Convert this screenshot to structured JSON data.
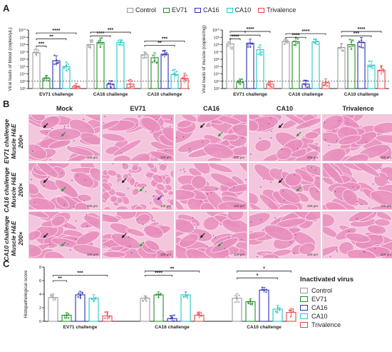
{
  "panels": {
    "a": "A",
    "b": "B",
    "c": "C"
  },
  "colors": {
    "Control": "#9a9a9a",
    "EV71": "#1f8f24",
    "CA16": "#2b2fb0",
    "CA10": "#22c7c7",
    "Trivalence": "#e84545",
    "he_background": "#f4c6dd",
    "he_fiber": "#e88ebd",
    "arrow_black": "#111111",
    "arrow_green": "#1d9a2a",
    "arrow_blue": "#2030c0"
  },
  "legend_a": [
    "Control",
    "EV71",
    "CA16",
    "CA10",
    "Trivalence"
  ],
  "chart_data": [
    {
      "type": "bar",
      "ylabel": "Viral loads of blood (copies/μL)",
      "log_scale": true,
      "ylim_log10": [
        2,
        10
      ],
      "yticks": [
        "10²",
        "10³",
        "10⁴",
        "10⁵",
        "10⁶",
        "10⁷",
        "10⁸",
        "10⁹",
        "10¹⁰"
      ],
      "detection_limit_log10": 3,
      "categories": [
        "EV71 challenge",
        "CA16 challenge",
        "CA10 challenge"
      ],
      "series": [
        {
          "name": "Control",
          "values": [
            6.9,
            8.0,
            6.6
          ]
        },
        {
          "name": "EV71",
          "values": [
            3.4,
            8.3,
            6.2
          ]
        },
        {
          "name": "CA16",
          "values": [
            5.8,
            2.6,
            6.7
          ]
        },
        {
          "name": "CA10",
          "values": [
            5.0,
            8.3,
            3.9
          ]
        },
        {
          "name": "Trivalence",
          "values": [
            2.3,
            2.6,
            3.4
          ]
        }
      ],
      "significance": [
        {
          "label": "****",
          "group": 0,
          "from": 0,
          "to": 4,
          "y": 9.6
        },
        {
          "label": "**",
          "group": 0,
          "from": 0,
          "to": 3,
          "y": 8.8
        },
        {
          "label": "***",
          "group": 0,
          "from": 0,
          "to": 1,
          "y": 7.8
        },
        {
          "label": "***",
          "group": 1,
          "from": 0,
          "to": 4,
          "y": 9.7
        },
        {
          "label": "****",
          "group": 1,
          "from": 0,
          "to": 2,
          "y": 9.2
        },
        {
          "label": "***",
          "group": 2,
          "from": 0,
          "to": 4,
          "y": 8.5
        },
        {
          "label": "**",
          "group": 2,
          "from": 0,
          "to": 3,
          "y": 7.9
        }
      ]
    },
    {
      "type": "bar",
      "ylabel": "Viral loads of muscle (copies/mg)",
      "log_scale": true,
      "ylim_log10": [
        2,
        10
      ],
      "yticks": [
        "10²",
        "10³",
        "10⁴",
        "10⁵",
        "10⁶",
        "10⁷",
        "10⁸",
        "10⁹",
        "10¹⁰"
      ],
      "detection_limit_log10": 3,
      "categories": [
        "EV71 challenge",
        "CA16 challenge",
        "CA10 challenge"
      ],
      "series": [
        {
          "name": "Control",
          "values": [
            8.1,
            8.4,
            7.6
          ]
        },
        {
          "name": "EV71",
          "values": [
            2.9,
            8.4,
            8.0
          ]
        },
        {
          "name": "CA16",
          "values": [
            8.2,
            2.6,
            8.3
          ]
        },
        {
          "name": "CA10",
          "values": [
            7.3,
            8.4,
            5.2
          ]
        },
        {
          "name": "Trivalence",
          "values": [
            2.6,
            2.8,
            4.5
          ]
        }
      ],
      "significance": [
        {
          "label": "****",
          "group": 0,
          "from": 0,
          "to": 4,
          "y": 9.8
        },
        {
          "label": "*",
          "group": 0,
          "from": 0,
          "to": 3,
          "y": 9.3
        },
        {
          "label": "****",
          "group": 0,
          "from": 0,
          "to": 1,
          "y": 8.8
        },
        {
          "label": "****",
          "group": 1,
          "from": 0,
          "to": 4,
          "y": 9.5
        },
        {
          "label": "****",
          "group": 1,
          "from": 0,
          "to": 2,
          "y": 9.0
        },
        {
          "label": "****",
          "group": 2,
          "from": 0,
          "to": 4,
          "y": 9.8
        },
        {
          "label": "***",
          "group": 2,
          "from": 0,
          "to": 3,
          "y": 9.2
        }
      ]
    },
    {
      "type": "bar",
      "ylabel": "Histopathological score",
      "log_scale": false,
      "ylim": [
        0,
        8
      ],
      "yticks": [
        "0",
        "2",
        "4",
        "6",
        "8"
      ],
      "categories": [
        "EV71 challenge",
        "CA16 challenge",
        "CA10 challenge"
      ],
      "series": [
        {
          "name": "Control",
          "values": [
            3.5,
            3.4,
            3.4
          ]
        },
        {
          "name": "EV71",
          "values": [
            0.9,
            3.9,
            2.9
          ]
        },
        {
          "name": "CA16",
          "values": [
            3.9,
            0.4,
            4.6
          ]
        },
        {
          "name": "CA10",
          "values": [
            3.4,
            3.9,
            1.8
          ]
        },
        {
          "name": "Trivalence",
          "values": [
            0.8,
            0.9,
            1.3
          ]
        }
      ],
      "significance": [
        {
          "label": "***",
          "group": 0,
          "from": 0,
          "to": 4,
          "y": 6.8
        },
        {
          "label": "**",
          "group": 0,
          "from": 0,
          "to": 1,
          "y": 6.0
        },
        {
          "label": "**",
          "group": 1,
          "from": 0,
          "to": 4,
          "y": 7.4
        },
        {
          "label": "****",
          "group": 1,
          "from": 0,
          "to": 2,
          "y": 6.8
        },
        {
          "label": "*",
          "group": 2,
          "from": 0,
          "to": 4,
          "y": 7.4
        },
        {
          "label": "*",
          "group": 2,
          "from": 0,
          "to": 3,
          "y": 6.4
        }
      ]
    }
  ],
  "panel_b": {
    "columns": [
      "Mock",
      "EV71",
      "CA16",
      "CA10",
      "Trivalence"
    ],
    "rows": [
      "EV71 challenge Muscle H&E 200×",
      "CA16 challenge Muscle H&E 200×",
      "CA10 challenge Muscle H&E 200×"
    ],
    "scale_bar": "100 μm",
    "arrows": [
      [
        [
          "black",
          "green"
        ],
        [],
        [
          "black",
          "green"
        ],
        [
          "black",
          "green"
        ],
        []
      ],
      [
        [
          "black",
          "green"
        ],
        [
          "black",
          "green",
          "blue"
        ],
        [],
        [
          "black",
          "green"
        ],
        []
      ],
      [
        [
          "black",
          "green"
        ],
        [
          "black",
          "green"
        ],
        [
          "black",
          "green"
        ],
        [],
        []
      ]
    ]
  },
  "legend_c": {
    "title": "Inactivated virus",
    "items": [
      "Control",
      "EV71",
      "CA16",
      "CA10",
      "Trivalence"
    ]
  }
}
